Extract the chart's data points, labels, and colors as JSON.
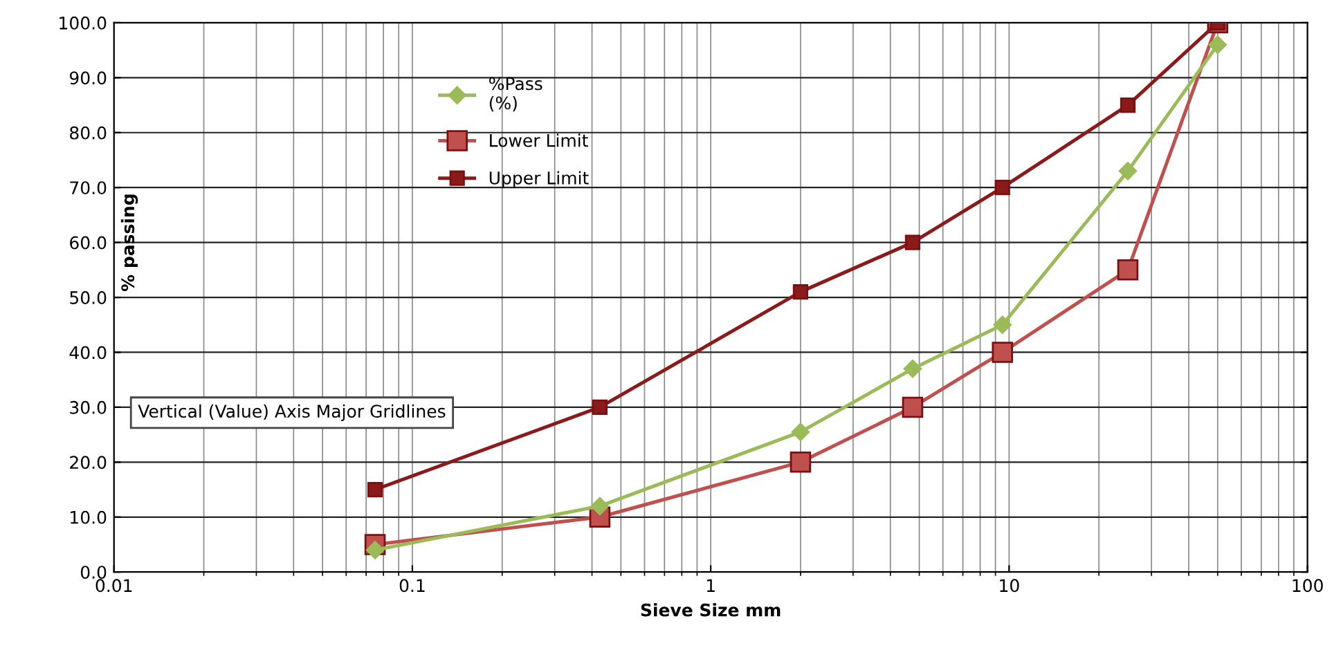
{
  "chart_data": {
    "type": "line",
    "xlabel": "Sieve Size mm",
    "ylabel": "% passing",
    "log": "x",
    "grid": true,
    "legend": "top left",
    "xlim": [
      0.01,
      100
    ],
    "xticks": [
      0.01,
      0.1,
      1,
      10,
      100
    ],
    "ylim": [
      0,
      100
    ],
    "yticks": [
      {
        "value": 0,
        "label": "0.0"
      },
      {
        "value": 10,
        "label": "10.0"
      },
      {
        "value": 20,
        "label": "20.0"
      },
      {
        "value": 30,
        "label": "30.0"
      },
      {
        "value": 40,
        "label": "40.0"
      },
      {
        "value": 50,
        "label": "50.0"
      },
      {
        "value": 60,
        "label": "60.0"
      },
      {
        "value": 70,
        "label": "70.0"
      },
      {
        "value": 80,
        "label": "80.0"
      },
      {
        "value": 90,
        "label": "90.0"
      },
      {
        "value": 100,
        "label": "100.0"
      }
    ],
    "x": [
      0.075,
      0.425,
      2,
      4.75,
      9.5,
      25,
      50
    ],
    "series": [
      {
        "name": "%Pass\n(%)",
        "color": "#9bbb59",
        "marker": "diamond",
        "values": [
          4,
          12,
          25.5,
          37,
          45,
          73,
          96
        ]
      },
      {
        "name": "Lower Limit",
        "color": "#c0504d",
        "marker": "square",
        "values": [
          5,
          10,
          20,
          30,
          40,
          55,
          100
        ]
      },
      {
        "name": "Upper Limit",
        "color": "#8b1a1a",
        "marker": "square",
        "values": [
          15,
          30,
          51,
          60,
          70,
          85,
          100
        ]
      }
    ],
    "annotations": [
      "Vertical (Value) Axis Major Gridlines"
    ]
  }
}
